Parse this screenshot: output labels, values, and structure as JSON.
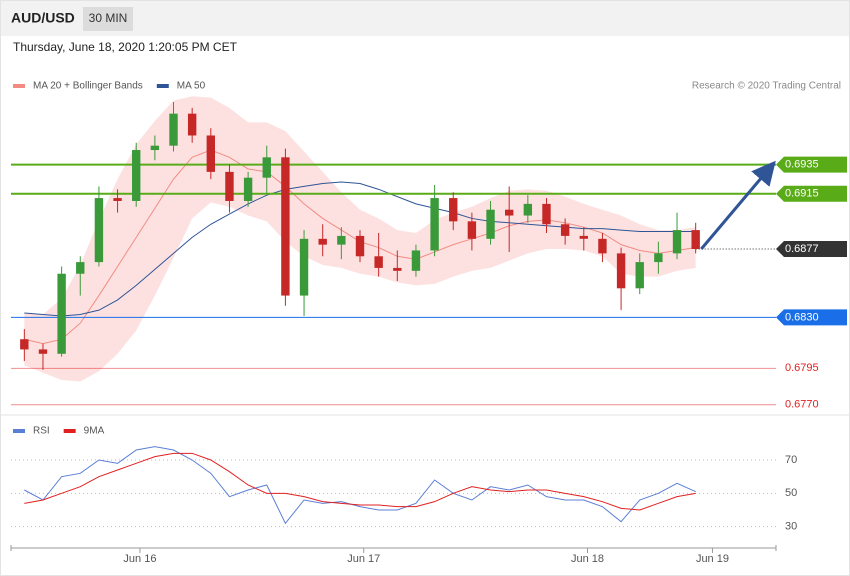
{
  "header": {
    "symbol": "AUD/USD",
    "timeframe": "30 MIN",
    "datetime": "Thursday, June 18, 2020 1:20:05 PM CET"
  },
  "chart_data": [
    {
      "type": "candlestick",
      "source": "Research © 2020 Trading Central",
      "up_color": "#3a9a3a",
      "down_color": "#c62828",
      "open": [
        0.6815,
        0.6808,
        0.6805,
        0.686,
        0.6868,
        0.6912,
        0.691,
        0.6945,
        0.6948,
        0.697,
        0.6955,
        0.693,
        0.691,
        0.6926,
        0.694,
        0.6845,
        0.6884,
        0.688,
        0.6886,
        0.6872,
        0.6864,
        0.6862,
        0.6876,
        0.6912,
        0.6896,
        0.6884,
        0.6904,
        0.69,
        0.6908,
        0.6894,
        0.6886,
        0.6884,
        0.6874,
        0.685,
        0.6868,
        0.6874,
        0.689
      ],
      "high": [
        0.6822,
        0.6812,
        0.6865,
        0.6872,
        0.692,
        0.6918,
        0.695,
        0.6955,
        0.6978,
        0.6974,
        0.696,
        0.6935,
        0.693,
        0.6948,
        0.6946,
        0.689,
        0.6894,
        0.6892,
        0.689,
        0.6888,
        0.6876,
        0.688,
        0.6921,
        0.6916,
        0.6902,
        0.691,
        0.692,
        0.6914,
        0.6912,
        0.6898,
        0.6892,
        0.6888,
        0.6878,
        0.6874,
        0.6882,
        0.6902,
        0.6895
      ],
      "low": [
        0.68,
        0.6794,
        0.6803,
        0.6845,
        0.6865,
        0.6902,
        0.6906,
        0.6938,
        0.6944,
        0.695,
        0.6925,
        0.6902,
        0.6906,
        0.6915,
        0.6838,
        0.6831,
        0.6872,
        0.687,
        0.6868,
        0.6858,
        0.6855,
        0.6858,
        0.6872,
        0.689,
        0.6876,
        0.688,
        0.6875,
        0.6895,
        0.6888,
        0.688,
        0.6876,
        0.6868,
        0.6835,
        0.6846,
        0.686,
        0.687,
        0.6874
      ],
      "close": [
        0.6808,
        0.6805,
        0.686,
        0.6868,
        0.6912,
        0.691,
        0.6945,
        0.6948,
        0.697,
        0.6955,
        0.693,
        0.691,
        0.6926,
        0.694,
        0.6845,
        0.6884,
        0.688,
        0.6886,
        0.6872,
        0.6864,
        0.6862,
        0.6876,
        0.6912,
        0.6896,
        0.6884,
        0.6904,
        0.69,
        0.6908,
        0.6894,
        0.6886,
        0.6884,
        0.6874,
        0.685,
        0.6868,
        0.6874,
        0.689,
        0.6877
      ],
      "series": [
        {
          "name": "MA 20 + Bollinger Bands",
          "color": "#f28b82",
          "band_color": "#fdd9d9",
          "values": [
            0.6815,
            0.6812,
            0.6815,
            0.6826,
            0.6845,
            0.6865,
            0.6885,
            0.6905,
            0.6925,
            0.694,
            0.6945,
            0.694,
            0.6932,
            0.693,
            0.692,
            0.6908,
            0.6898,
            0.689,
            0.6882,
            0.6878,
            0.6872,
            0.687,
            0.6875,
            0.688,
            0.6884,
            0.6888,
            0.6893,
            0.6896,
            0.6897,
            0.6895,
            0.6892,
            0.6888,
            0.688,
            0.6876,
            0.6874,
            0.6876,
            0.6878
          ],
          "upper": [
            0.6833,
            0.6832,
            0.6843,
            0.6866,
            0.6897,
            0.6925,
            0.6949,
            0.6965,
            0.6979,
            0.6982,
            0.6981,
            0.6974,
            0.6964,
            0.6964,
            0.6958,
            0.6944,
            0.693,
            0.6916,
            0.6904,
            0.6898,
            0.689,
            0.6888,
            0.6897,
            0.6902,
            0.6906,
            0.6912,
            0.6917,
            0.6918,
            0.6917,
            0.6913,
            0.6908,
            0.6904,
            0.69,
            0.6894,
            0.689,
            0.689,
            0.6892
          ],
          "lower": [
            0.6797,
            0.6792,
            0.6787,
            0.6786,
            0.6793,
            0.6805,
            0.6821,
            0.6845,
            0.6871,
            0.6898,
            0.6909,
            0.6906,
            0.69,
            0.6896,
            0.6882,
            0.6872,
            0.6866,
            0.6864,
            0.686,
            0.6858,
            0.6854,
            0.6852,
            0.6853,
            0.6858,
            0.6862,
            0.6864,
            0.6869,
            0.6874,
            0.6877,
            0.6877,
            0.6876,
            0.6872,
            0.686,
            0.6858,
            0.6858,
            0.6862,
            0.6864
          ]
        },
        {
          "name": "MA 50",
          "color": "#2f5597",
          "values": [
            0.6833,
            0.6832,
            0.6831,
            0.6832,
            0.6835,
            0.6842,
            0.6852,
            0.6863,
            0.6874,
            0.6885,
            0.6894,
            0.6901,
            0.6908,
            0.6914,
            0.6918,
            0.692,
            0.6922,
            0.6923,
            0.6922,
            0.6918,
            0.6913,
            0.6908,
            0.6905,
            0.6902,
            0.6898,
            0.6896,
            0.6895,
            0.6894,
            0.6893,
            0.6892,
            0.6891,
            0.6891,
            0.689,
            0.6889,
            0.6889,
            0.6889,
            0.6889
          ]
        }
      ],
      "levels": [
        {
          "value": 0.6935,
          "label": "0.6935",
          "kind": "resistance",
          "color": "#5aab18"
        },
        {
          "value": 0.6915,
          "label": "0.6915",
          "kind": "resistance",
          "color": "#5aab18"
        },
        {
          "value": 0.6877,
          "label": "0.6877",
          "kind": "current",
          "color": "#333333"
        },
        {
          "value": 0.683,
          "label": "0.6830",
          "kind": "support",
          "color": "#1a6fe8"
        },
        {
          "value": 0.6795,
          "label": "0.6795",
          "kind": "minor",
          "color": "#e02020"
        },
        {
          "value": 0.677,
          "label": "0.6770",
          "kind": "minor",
          "color": "#e02020"
        }
      ],
      "xlim": [
        0,
        37
      ],
      "ylim": [
        0.6765,
        0.7
      ]
    },
    {
      "type": "line",
      "series": [
        {
          "name": "RSI",
          "color": "#5b7fd6",
          "values": [
            52,
            46,
            60,
            62,
            70,
            68,
            76,
            78,
            76,
            70,
            62,
            48,
            52,
            55,
            32,
            46,
            44,
            45,
            42,
            40,
            40,
            44,
            58,
            50,
            46,
            54,
            52,
            55,
            48,
            46,
            46,
            42,
            33,
            46,
            50,
            56,
            51
          ]
        },
        {
          "name": "9MA",
          "color": "#e02020",
          "values": [
            44,
            46,
            50,
            54,
            60,
            64,
            68,
            72,
            74,
            74,
            70,
            63,
            55,
            50,
            50,
            48,
            45,
            44,
            43,
            43,
            42,
            42,
            45,
            50,
            54,
            52,
            51,
            52,
            52,
            50,
            48,
            45,
            41,
            40,
            44,
            48,
            50
          ]
        }
      ],
      "xlim": [
        0,
        37
      ],
      "xticks": [
        {
          "value": 6.7,
          "label": "Jun 16"
        },
        {
          "value": 18.7,
          "label": "Jun 17"
        },
        {
          "value": 30.7,
          "label": "Jun 18"
        },
        {
          "value": 37.4,
          "label": "Jun 19"
        }
      ],
      "ylim": [
        19,
        94
      ],
      "yticks": [
        30,
        50,
        70
      ],
      "grid": true
    }
  ]
}
